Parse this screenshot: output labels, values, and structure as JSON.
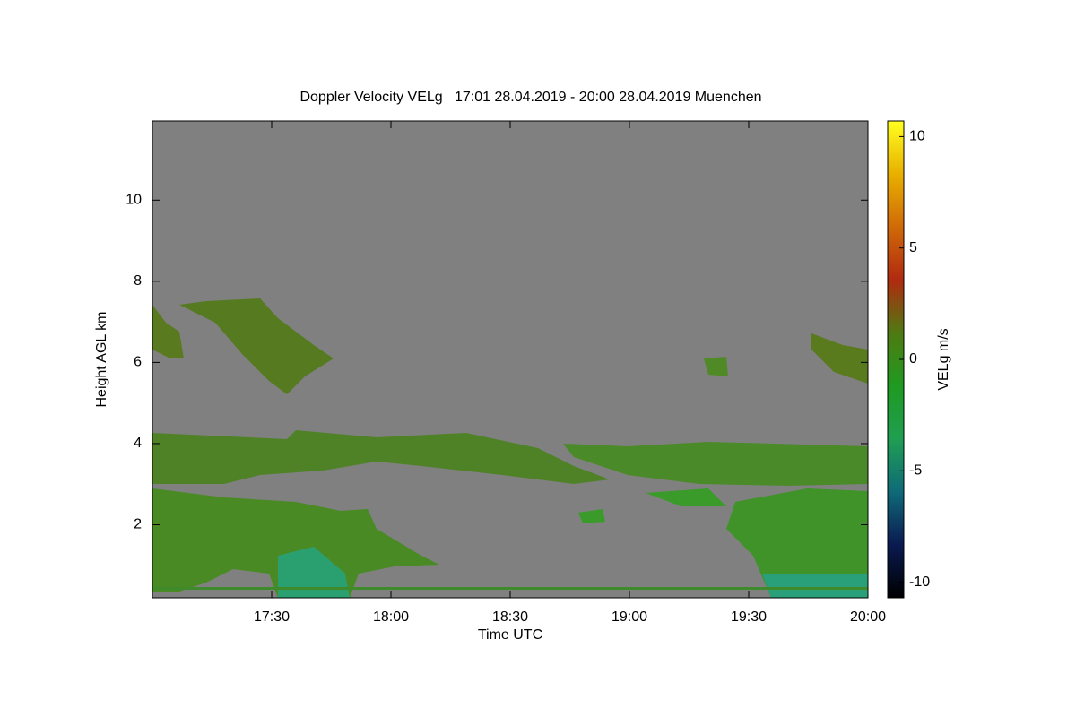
{
  "chart_data": {
    "type": "heatmap",
    "title": "Doppler Velocity VELg   17:01 28.04.2019 - 20:00 28.04.2019 Muenchen",
    "xlabel": "Time UTC",
    "ylabel": "Height AGL km",
    "xlim": [
      1020,
      1200
    ],
    "xticks": [
      {
        "value": 1050,
        "label": "17:30"
      },
      {
        "value": 1080,
        "label": "18:00"
      },
      {
        "value": 1110,
        "label": "18:30"
      },
      {
        "value": 1140,
        "label": "19:00"
      },
      {
        "value": 1170,
        "label": "19:30"
      },
      {
        "value": 1200,
        "label": "20:00"
      }
    ],
    "ylim": [
      0.2,
      11.95
    ],
    "yticks": [
      2,
      4,
      6,
      8,
      10
    ],
    "background": "#808080",
    "colorbar": {
      "label": "VELg m/s",
      "lim": [
        -10.7,
        10.7
      ],
      "ticks": [
        -10,
        -5,
        0,
        5,
        10
      ],
      "colors": [
        "#000000",
        "#0a1a50",
        "#0f6a78",
        "#1f9e52",
        "#1f9a20",
        "#4f7a12",
        "#b02a10",
        "#d06a08",
        "#e8b000",
        "#ffff20"
      ]
    }
  }
}
